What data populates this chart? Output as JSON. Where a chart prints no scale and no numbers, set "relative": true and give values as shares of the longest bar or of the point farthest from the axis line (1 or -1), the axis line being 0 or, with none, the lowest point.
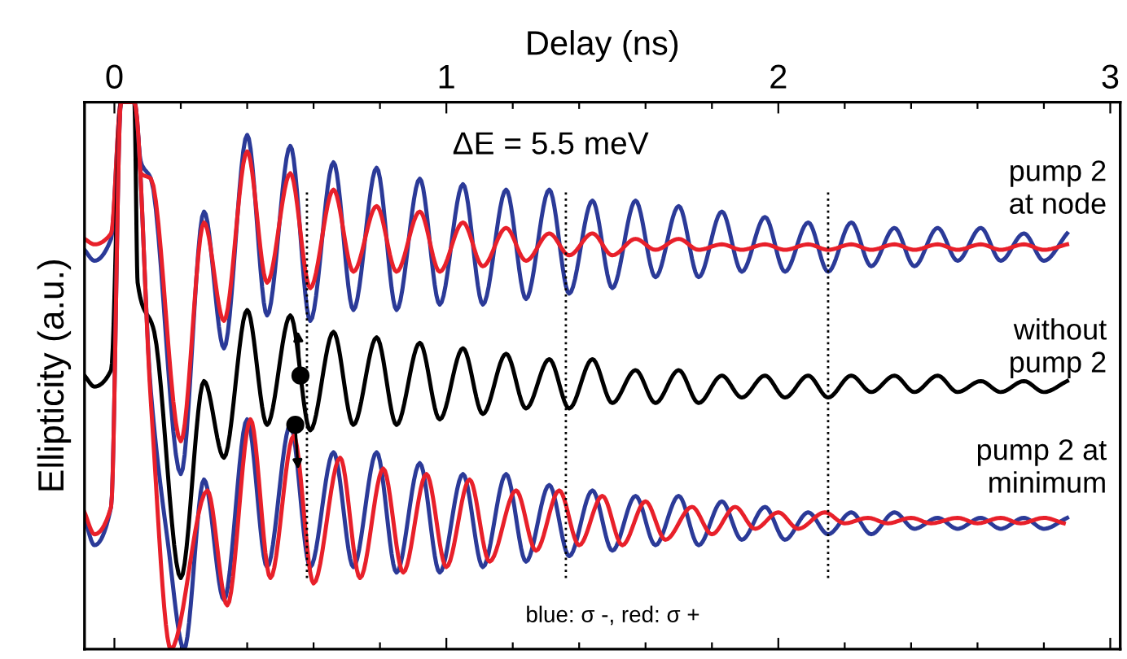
{
  "chart_data": {
    "type": "line",
    "relative": true,
    "xlabel": "Delay (ns)",
    "ylabel": "Ellipticity (a.u.)",
    "xlim": [
      -0.09,
      3.03
    ],
    "xticks": [
      0,
      {
        "value": 0.2,
        "label": null
      },
      {
        "value": 0.4,
        "label": null
      },
      {
        "value": 0.6,
        "label": null
      },
      {
        "value": 0.8,
        "label": null
      },
      1,
      {
        "value": 1.2,
        "label": null
      },
      {
        "value": 1.4,
        "label": null
      },
      {
        "value": 1.6,
        "label": null
      },
      {
        "value": 1.8,
        "label": null
      },
      2,
      {
        "value": 2.2,
        "label": null
      },
      {
        "value": 2.4,
        "label": null
      },
      {
        "value": 2.6,
        "label": null
      },
      {
        "value": 2.8,
        "label": null
      },
      3
    ],
    "tick_labels": "x",
    "grid": false,
    "legend": false,
    "marker": "none",
    "line_style": "solid",
    "annotations": [
      "ΔE = 5.5 meV",
      "pump 2\nat node",
      "without\npump 2",
      "pump 2 at\nminimum",
      "blue: σ -, red: σ +"
    ],
    "ref_lines": [
      {
        "axis": "x",
        "value": 0.58,
        "label": null,
        "line_style": "dotted",
        "color": "#000000"
      },
      {
        "axis": "x",
        "value": 1.36,
        "label": null,
        "line_style": "dotted",
        "color": "#000000"
      },
      {
        "axis": "x",
        "value": 2.15,
        "label": null,
        "line_style": "dotted",
        "color": "#000000"
      }
    ],
    "series": [
      {
        "color": "#2b3a98",
        "x": [
          -0.09,
          -0.06,
          -0.01,
          0.02,
          0.06,
          0.08,
          0.11,
          0.2,
          0.27,
          0.33,
          0.4,
          0.46,
          0.53,
          0.59,
          0.66,
          0.72,
          0.79,
          0.85,
          0.92,
          0.98,
          1.05,
          1.11,
          1.18,
          1.24,
          1.31,
          1.37,
          1.44,
          1.5,
          1.57,
          1.63,
          1.7,
          1.76,
          1.83,
          1.89,
          1.96,
          2.02,
          2.09,
          2.15,
          2.22,
          2.28,
          2.35,
          2.41,
          2.48,
          2.54,
          2.61,
          2.67,
          2.74,
          2.8,
          2.87
        ],
        "values": [
          0.73,
          0.71,
          0.75,
          1.0,
          1.0,
          0.89,
          0.86,
          0.32,
          0.8,
          0.55,
          0.94,
          0.61,
          0.92,
          0.6,
          0.89,
          0.62,
          0.88,
          0.62,
          0.86,
          0.63,
          0.85,
          0.63,
          0.84,
          0.64,
          0.84,
          0.65,
          0.82,
          0.66,
          0.82,
          0.68,
          0.81,
          0.68,
          0.8,
          0.69,
          0.79,
          0.69,
          0.78,
          0.69,
          0.78,
          0.7,
          0.77,
          0.7,
          0.77,
          0.71,
          0.77,
          0.71,
          0.76,
          0.71,
          0.76
        ]
      },
      {
        "color": "#e8202a",
        "x": [
          -0.09,
          -0.06,
          -0.01,
          0.02,
          0.06,
          0.08,
          0.11,
          0.2,
          0.27,
          0.33,
          0.4,
          0.46,
          0.53,
          0.59,
          0.66,
          0.72,
          0.79,
          0.85,
          0.92,
          0.98,
          1.05,
          1.11,
          1.18,
          1.24,
          1.31,
          1.37,
          1.44,
          1.5,
          1.57,
          1.63,
          1.7,
          1.76,
          1.83,
          1.89,
          1.96,
          2.02,
          2.09,
          2.15,
          2.22,
          2.28,
          2.35,
          2.41,
          2.48,
          2.54,
          2.61,
          2.67,
          2.74,
          2.8,
          2.87
        ],
        "values": [
          0.75,
          0.74,
          0.76,
          1.0,
          1.0,
          0.87,
          0.86,
          0.38,
          0.78,
          0.6,
          0.91,
          0.67,
          0.87,
          0.66,
          0.84,
          0.69,
          0.81,
          0.69,
          0.8,
          0.69,
          0.78,
          0.7,
          0.77,
          0.71,
          0.76,
          0.72,
          0.76,
          0.72,
          0.75,
          0.73,
          0.75,
          0.73,
          0.74,
          0.73,
          0.74,
          0.73,
          0.74,
          0.73,
          0.74,
          0.73,
          0.74,
          0.73,
          0.74,
          0.73,
          0.74,
          0.73,
          0.74,
          0.73,
          0.74
        ]
      },
      {
        "color": "#000000",
        "x": [
          -0.09,
          -0.06,
          -0.01,
          0.02,
          0.06,
          0.07,
          0.12,
          0.2,
          0.27,
          0.33,
          0.4,
          0.46,
          0.53,
          0.59,
          0.66,
          0.72,
          0.79,
          0.85,
          0.92,
          0.98,
          1.05,
          1.11,
          1.18,
          1.24,
          1.31,
          1.37,
          1.44,
          1.5,
          1.57,
          1.63,
          1.7,
          1.76,
          1.83,
          1.89,
          1.96,
          2.02,
          2.09,
          2.15,
          2.22,
          2.28,
          2.35,
          2.41,
          2.48,
          2.54,
          2.61,
          2.67,
          2.74,
          2.8,
          2.87
        ],
        "values": [
          0.5,
          0.48,
          0.51,
          1.0,
          1.0,
          0.67,
          0.58,
          0.13,
          0.49,
          0.35,
          0.62,
          0.41,
          0.61,
          0.4,
          0.58,
          0.41,
          0.57,
          0.41,
          0.56,
          0.42,
          0.55,
          0.43,
          0.54,
          0.44,
          0.53,
          0.44,
          0.53,
          0.45,
          0.51,
          0.45,
          0.51,
          0.45,
          0.5,
          0.46,
          0.5,
          0.46,
          0.5,
          0.46,
          0.5,
          0.47,
          0.5,
          0.47,
          0.5,
          0.47,
          0.49,
          0.47,
          0.49,
          0.47,
          0.49
        ]
      },
      {
        "color": "#2b3a98",
        "x": [
          -0.09,
          -0.06,
          -0.01,
          0.02,
          0.06,
          0.11,
          0.16,
          0.21,
          0.27,
          0.33,
          0.4,
          0.46,
          0.53,
          0.59,
          0.66,
          0.72,
          0.79,
          0.85,
          0.92,
          0.98,
          1.05,
          1.11,
          1.18,
          1.24,
          1.31,
          1.37,
          1.44,
          1.5,
          1.57,
          1.63,
          1.7,
          1.76,
          1.83,
          1.89,
          1.96,
          2.02,
          2.09,
          2.15,
          2.22,
          2.28,
          2.35,
          2.41,
          2.48,
          2.54,
          2.61,
          2.67,
          2.74,
          2.8,
          2.87
        ],
        "values": [
          0.24,
          0.19,
          0.26,
          1.0,
          1.0,
          0.47,
          0.2,
          0.0,
          0.31,
          0.09,
          0.42,
          0.15,
          0.41,
          0.15,
          0.36,
          0.15,
          0.36,
          0.14,
          0.34,
          0.14,
          0.32,
          0.15,
          0.32,
          0.16,
          0.3,
          0.17,
          0.29,
          0.18,
          0.28,
          0.19,
          0.28,
          0.19,
          0.27,
          0.2,
          0.26,
          0.2,
          0.25,
          0.21,
          0.25,
          0.21,
          0.25,
          0.22,
          0.24,
          0.22,
          0.24,
          0.22,
          0.24,
          0.22,
          0.24
        ]
      },
      {
        "color": "#e8202a",
        "x": [
          -0.09,
          -0.06,
          -0.01,
          0.02,
          0.06,
          0.11,
          0.17,
          0.28,
          0.34,
          0.41,
          0.47,
          0.54,
          0.6,
          0.68,
          0.74,
          0.81,
          0.87,
          0.94,
          1.0,
          1.07,
          1.13,
          1.21,
          1.27,
          1.34,
          1.4,
          1.47,
          1.53,
          1.6,
          1.66,
          1.74,
          1.8,
          1.87,
          1.93,
          2.0,
          2.06,
          2.14,
          2.2,
          2.27,
          2.33,
          2.4,
          2.46,
          2.54,
          2.6,
          2.67,
          2.73,
          2.8,
          2.86
        ],
        "values": [
          0.25,
          0.21,
          0.26,
          1.0,
          1.0,
          0.45,
          0.0,
          0.29,
          0.08,
          0.42,
          0.13,
          0.39,
          0.12,
          0.35,
          0.13,
          0.33,
          0.14,
          0.32,
          0.15,
          0.31,
          0.16,
          0.29,
          0.18,
          0.29,
          0.19,
          0.28,
          0.19,
          0.27,
          0.2,
          0.26,
          0.21,
          0.26,
          0.22,
          0.25,
          0.22,
          0.25,
          0.23,
          0.24,
          0.23,
          0.24,
          0.23,
          0.24,
          0.23,
          0.24,
          0.23,
          0.24,
          0.23
        ]
      }
    ]
  }
}
